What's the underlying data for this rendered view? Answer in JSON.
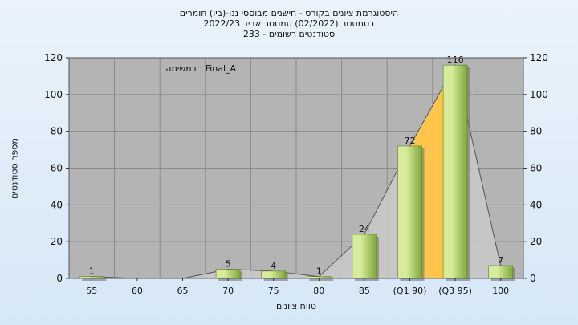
{
  "chart_data": {
    "type": "bar",
    "title_lines": [
      "היסטוגרמת ציונים בקורס - חישנים מבוססי ננו-(ביו) חומרים",
      "בסמסטר  (02/2022)  סמסטר אביב 2022/23",
      "סטודנטים רשומים - 233"
    ],
    "annotation": "במשימה : Final_A",
    "xlabel": "טווח ציונים",
    "ylabel": "מספר סטודנטים",
    "categories": [
      "55",
      "60",
      "65",
      "70",
      "75",
      "80",
      "85",
      "(Q1 90)",
      "(Q3 95)",
      "100"
    ],
    "values": [
      1,
      0,
      0,
      5,
      4,
      1,
      24,
      72,
      116,
      7
    ],
    "data_labels": [
      "1",
      "",
      "",
      "5",
      "4",
      "1",
      "24",
      "72",
      "116",
      "7"
    ],
    "ylim": [
      0,
      120
    ],
    "yticks": [
      0,
      20,
      40,
      60,
      80,
      100,
      120
    ],
    "grid": true,
    "right_axis": true,
    "quartile_band": {
      "from": "(Q1 90)",
      "to": "(Q3 95)"
    },
    "colors": {
      "plot_bg": "#b4b4b4",
      "bar_light": "#d7ec9a",
      "bar_dark": "#7ea83a",
      "quartile": "#ffc54a",
      "area_shadow": "#c9c9c9"
    }
  }
}
